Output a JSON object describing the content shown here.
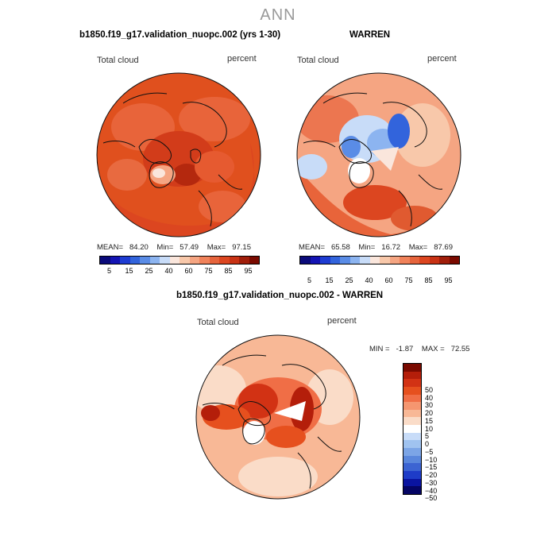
{
  "title": "ANN",
  "panels": {
    "model": {
      "case_title": "b1850.f19_g17.validation_nuopc.002 (yrs 1-30)",
      "variable": "Total cloud",
      "units": "percent",
      "stats": {
        "mean_label": "MEAN=",
        "mean": "84.20",
        "min_label": "Min=",
        "min": "57.49",
        "max_label": "Max=",
        "max": "97.15"
      }
    },
    "obs": {
      "case_title": "WARREN",
      "variable": "Total cloud",
      "units": "percent",
      "stats": {
        "mean_label": "MEAN=",
        "mean": "65.58",
        "min_label": "Min=",
        "min": "16.72",
        "max_label": "Max=",
        "max": "87.69"
      }
    },
    "diff": {
      "case_title": "b1850.f19_g17.validation_nuopc.002 - WARREN",
      "variable": "Total cloud",
      "units": "percent",
      "stats": {
        "min_label": "MIN =",
        "min": "-1.87",
        "max_label": "MAX =",
        "max": "72.55"
      }
    }
  },
  "colorbar_abs": {
    "colors": [
      "#0a0a7a",
      "#1414b4",
      "#1e3cd2",
      "#3264dc",
      "#5a8ce6",
      "#8cb4f0",
      "#c8dcf8",
      "#fae6dc",
      "#f8c8aa",
      "#f5a582",
      "#f0825a",
      "#e6643c",
      "#dc4620",
      "#c83214",
      "#a01e0a",
      "#7a0a00"
    ],
    "labels": [
      "5",
      "15",
      "25",
      "40",
      "60",
      "75",
      "85",
      "95"
    ]
  },
  "colorbar_diff": {
    "colors": [
      "#7a0a00",
      "#b41e0a",
      "#d23214",
      "#e6501e",
      "#f06e46",
      "#f59670",
      "#f8b896",
      "#fadcc8",
      "#ffffff",
      "#c8dcf8",
      "#a0c3f0",
      "#7ca5e6",
      "#5a87dc",
      "#3c64d2",
      "#1e3cc8",
      "#0a14a0",
      "#050564"
    ],
    "labels": [
      "50",
      "40",
      "30",
      "20",
      "15",
      "10",
      "5",
      "0",
      "−5",
      "−10",
      "−15",
      "−20",
      "−30",
      "−40",
      "−50"
    ]
  }
}
